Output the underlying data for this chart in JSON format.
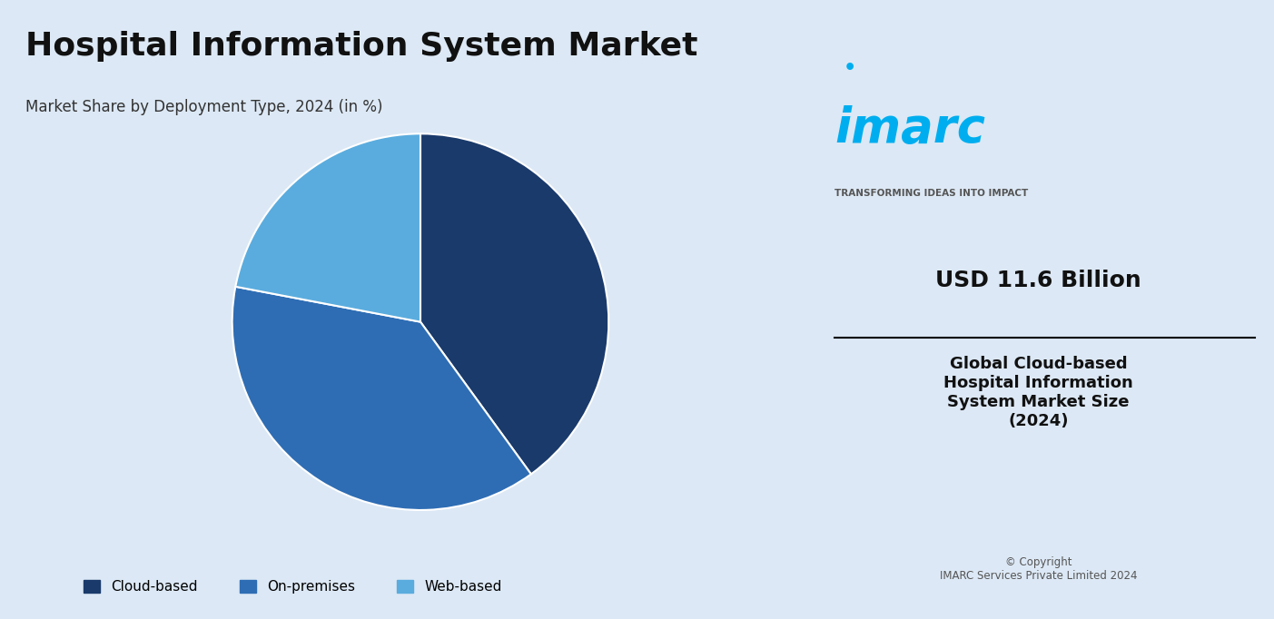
{
  "title": "Hospital Information System Market",
  "subtitle": "Market Share by Deployment Type, 2024 (in %)",
  "pie_labels": [
    "Cloud-based",
    "On-premises",
    "Web-based"
  ],
  "pie_values": [
    40,
    38,
    22
  ],
  "pie_colors": [
    "#1a3a6b",
    "#2e6db4",
    "#5aacde"
  ],
  "pie_startangle": 90,
  "legend_labels": [
    "Cloud-based",
    "On-premises",
    "Web-based"
  ],
  "legend_colors": [
    "#1a3a6b",
    "#2e6db4",
    "#5aacde"
  ],
  "main_bg": "#dce8f5",
  "right_panel_bg": "#ffffff",
  "imarc_text": "imarc",
  "imarc_tagline": "TRANSFORMING IDEAS INTO IMPACT",
  "usd_value": "USD 11.6 Billion",
  "description": "Global Cloud-based\nHospital Information\nSystem Market Size\n(2024)",
  "copyright": "© Copyright\nIMARC Services Private Limited 2024",
  "divider_color": "#000000",
  "imarc_color": "#00aeef",
  "imarc_dot_color": "#00aeef"
}
